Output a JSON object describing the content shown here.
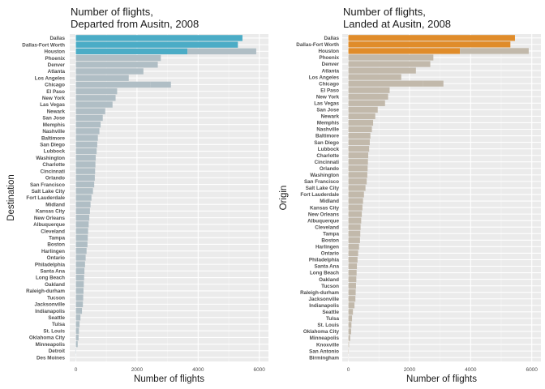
{
  "chart_data": [
    {
      "type": "bar",
      "orientation": "horizontal",
      "title": "Number of flights,\nDeparted from Ausitn, 2008",
      "xlabel": "Number of flights",
      "ylabel": "Destination",
      "xlim": [
        -200,
        6300
      ],
      "xticks": [
        0,
        2000,
        4000,
        6000
      ],
      "grid": true,
      "base_color": "#b0bec5",
      "highlight_color": "#4bacc6",
      "categories": [
        "Dallas",
        "Dallas-Fort Worth",
        "Houston",
        "Phoenix",
        "Denver",
        "Atlanta",
        "Los Angeles",
        "Chicago",
        "El Paso",
        "New York",
        "Las Vegas",
        "Newark",
        "San Jose",
        "Memphis",
        "Nashville",
        "Baltimore",
        "San Diego",
        "Lubbock",
        "Washington",
        "Charlotte",
        "Cincinnati",
        "Orlando",
        "San Francisco",
        "Salt Lake City",
        "Fort Lauderdale",
        "Midland",
        "Kansas City",
        "New Orleans",
        "Albuquerque",
        "Cleveland",
        "Tampa",
        "Boston",
        "Harlingen",
        "Ontario",
        "Philadelphia",
        "Santa Ana",
        "Long Beach",
        "Oakland",
        "Raleigh-durham",
        "Tucson",
        "Jacksonville",
        "Indianapolis",
        "Seattle",
        "Tulsa",
        "St. Louis",
        "Oklahoma City",
        "Minneapolis",
        "Detroit",
        "Des Moines"
      ],
      "series": [
        {
          "values": [
            5450,
            5300,
            3650,
            2780,
            2680,
            2210,
            1730,
            2430,
            1350,
            1300,
            1200,
            960,
            880,
            810,
            770,
            720,
            700,
            680,
            650,
            640,
            630,
            620,
            600,
            560,
            510,
            480,
            460,
            440,
            420,
            400,
            390,
            380,
            350,
            320,
            300,
            280,
            270,
            260,
            250,
            240,
            230,
            200,
            150,
            120,
            100,
            90,
            60,
            10,
            5
          ]
        },
        {
          "values": [
            0,
            0,
            2250,
            0,
            0,
            0,
            0,
            680,
            0,
            0,
            0,
            0,
            0,
            0,
            0,
            0,
            0,
            0,
            0,
            0,
            0,
            0,
            0,
            0,
            0,
            0,
            0,
            0,
            0,
            0,
            0,
            0,
            0,
            0,
            0,
            0,
            0,
            0,
            0,
            0,
            0,
            0,
            0,
            0,
            0,
            0,
            0,
            0,
            0
          ]
        }
      ]
    },
    {
      "type": "bar",
      "orientation": "horizontal",
      "title": "Number of flights,\nLanded at Ausitn, 2008",
      "xlabel": "Number of flights",
      "ylabel": "Origin",
      "xlim": [
        -200,
        6300
      ],
      "xticks": [
        0,
        2000,
        4000,
        6000
      ],
      "grid": true,
      "base_color": "#c2b9ab",
      "highlight_color": "#e08c2a",
      "categories": [
        "Dallas",
        "Dallas-Fort Worth",
        "Houston",
        "Phoenix",
        "Denver",
        "Atlanta",
        "Los Angeles",
        "Chicago",
        "El Paso",
        "New York",
        "Las Vegas",
        "San Jose",
        "Newark",
        "Memphis",
        "Nashville",
        "Baltimore",
        "San Diego",
        "Lubbock",
        "Charlotte",
        "Cincinnati",
        "Orlando",
        "Washington",
        "San Francisco",
        "Salt Lake City",
        "Fort Lauderdale",
        "Midland",
        "Kansas City",
        "New Orleans",
        "Albuquerque",
        "Cleveland",
        "Tampa",
        "Boston",
        "Harlingen",
        "Ontario",
        "Philadelphia",
        "Santa Ana",
        "Long Beach",
        "Oakland",
        "Tucson",
        "Raleigh-durham",
        "Jacksonville",
        "Indianapolis",
        "Seattle",
        "Tulsa",
        "St. Louis",
        "Oklahoma City",
        "Minneapolis",
        "Knoxville",
        "San Antonio",
        "Birmingham"
      ],
      "series": [
        {
          "values": [
            5450,
            5300,
            3650,
            2780,
            2680,
            2210,
            1730,
            2430,
            1350,
            1300,
            1200,
            960,
            880,
            810,
            770,
            720,
            700,
            680,
            650,
            640,
            630,
            620,
            600,
            560,
            510,
            480,
            460,
            440,
            420,
            400,
            390,
            380,
            350,
            320,
            300,
            280,
            270,
            260,
            250,
            240,
            230,
            200,
            150,
            120,
            100,
            90,
            60,
            20,
            10,
            5
          ]
        },
        {
          "values": [
            0,
            0,
            2250,
            0,
            0,
            0,
            0,
            680,
            0,
            0,
            0,
            0,
            0,
            0,
            0,
            0,
            0,
            0,
            0,
            0,
            0,
            0,
            0,
            0,
            0,
            0,
            0,
            0,
            0,
            0,
            0,
            0,
            0,
            0,
            0,
            0,
            0,
            0,
            0,
            0,
            0,
            0,
            0,
            0,
            0,
            0,
            0,
            0,
            0,
            0
          ]
        }
      ]
    }
  ]
}
